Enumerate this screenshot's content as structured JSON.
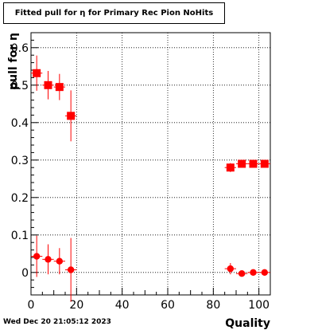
{
  "header": {
    "title": "Fitted pull for  η for Primary Rec Pion NoHits"
  },
  "footer": {
    "timestamp": "Wed Dec 20 21:05:12 2023"
  },
  "colors": {
    "marker": "#ff0000",
    "frame": "#000000",
    "grid": "#000000"
  },
  "chart_data": {
    "type": "scatter",
    "title": "Fitted pull for  η for Primary Rec Pion NoHits",
    "xlabel": "Quality",
    "ylabel": "pull for η",
    "xlim": [
      0,
      105
    ],
    "ylim": [
      -0.06,
      0.64
    ],
    "xticks": [
      0,
      20,
      40,
      60,
      80,
      100
    ],
    "yticks": [
      0,
      0.1,
      0.2,
      0.3,
      0.4,
      0.5,
      0.6
    ],
    "grid": true,
    "series": [
      {
        "marker": "square",
        "points": [
          {
            "x": 2.5,
            "y": 0.532,
            "yerr": 0.047,
            "xerr": 2.5
          },
          {
            "x": 7.5,
            "y": 0.5,
            "yerr": 0.038,
            "xerr": 2.5
          },
          {
            "x": 12.5,
            "y": 0.495,
            "yerr": 0.035,
            "xerr": 2.5
          },
          {
            "x": 17.5,
            "y": 0.418,
            "yerr": 0.068,
            "xerr": 2.5
          },
          {
            "x": 87.5,
            "y": 0.28,
            "yerr": 0.012,
            "xerr": 2.5
          },
          {
            "x": 92.5,
            "y": 0.29,
            "yerr": 0.006,
            "xerr": 2.5
          },
          {
            "x": 97.5,
            "y": 0.29,
            "yerr": 0.005,
            "xerr": 2.5
          },
          {
            "x": 102.5,
            "y": 0.29,
            "yerr": 0.005,
            "xerr": 2.5
          }
        ]
      },
      {
        "marker": "circle",
        "points": [
          {
            "x": 2.5,
            "y": 0.043,
            "yerr": 0.055,
            "xerr": 2.5
          },
          {
            "x": 7.5,
            "y": 0.035,
            "yerr": 0.04,
            "xerr": 2.5
          },
          {
            "x": 12.5,
            "y": 0.03,
            "yerr": 0.035,
            "xerr": 2.5
          },
          {
            "x": 17.5,
            "y": 0.007,
            "yerr": 0.085,
            "xerr": 2.5
          },
          {
            "x": 87.5,
            "y": 0.01,
            "yerr": 0.015,
            "xerr": 2.5
          },
          {
            "x": 92.5,
            "y": -0.003,
            "yerr": 0.005,
            "xerr": 2.5
          },
          {
            "x": 97.5,
            "y": 0.0,
            "yerr": 0.005,
            "xerr": 2.5
          },
          {
            "x": 102.5,
            "y": 0.0,
            "yerr": 0.004,
            "xerr": 2.5
          }
        ]
      }
    ]
  }
}
